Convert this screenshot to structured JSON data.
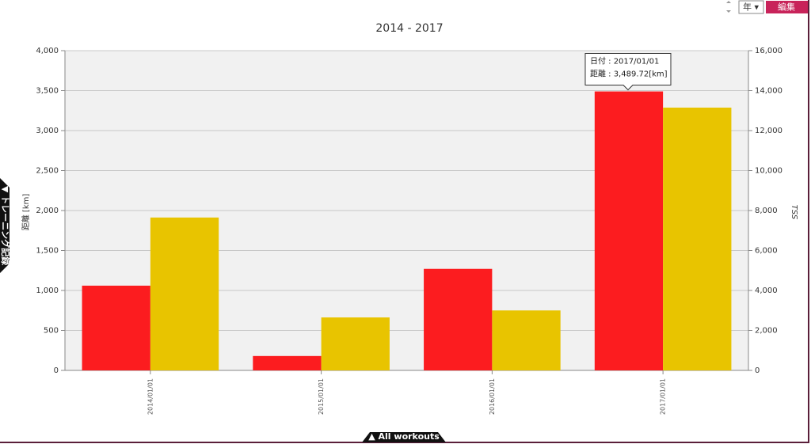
{
  "ui": {
    "year_select": "年 ▾",
    "edit_button": "編集",
    "side_tab": "▼ トレーニング記録",
    "bottom_tab": "▲ All workouts"
  },
  "chart_data": {
    "type": "bar",
    "title": "2014 - 2017",
    "categories": [
      "2014/01/01",
      "2015/01/01",
      "2016/01/01",
      "2017/01/01"
    ],
    "series": [
      {
        "color": "#fc1c1f",
        "values": [
          1060,
          180,
          1270,
          3489.72
        ]
      },
      {
        "color": "#e8c400",
        "values": [
          7650,
          2650,
          3000,
          13150
        ],
        "axis": "y2"
      }
    ],
    "ylabel": "距離 [km]",
    "y2label": "TSS",
    "ylim": [
      0,
      4000
    ],
    "yticks": [
      0,
      500,
      {
        "value": 1000,
        "label": "1,000"
      },
      {
        "value": 1500,
        "label": "1,500"
      },
      {
        "value": 2000,
        "label": "2,000"
      },
      {
        "value": 2500,
        "label": "2,500"
      },
      {
        "value": 3000,
        "label": "3,000"
      },
      {
        "value": 3500,
        "label": "3,500"
      },
      {
        "value": 4000,
        "label": "4,000"
      }
    ],
    "y2lim": [
      0,
      16000
    ],
    "y2ticks": [
      0,
      {
        "value": 2000,
        "label": "2,000"
      },
      {
        "value": 4000,
        "label": "4,000"
      },
      {
        "value": 6000,
        "label": "6,000"
      },
      {
        "value": 8000,
        "label": "8,000"
      },
      {
        "value": 10000,
        "label": "10,000"
      },
      {
        "value": 12000,
        "label": "12,000"
      },
      {
        "value": 14000,
        "label": "14,000"
      },
      {
        "value": 16000,
        "label": "16,000"
      }
    ],
    "grid": true,
    "tooltip": [
      "日付 : 2017/01/01",
      "距離 : 3,489.72[km]"
    ]
  }
}
